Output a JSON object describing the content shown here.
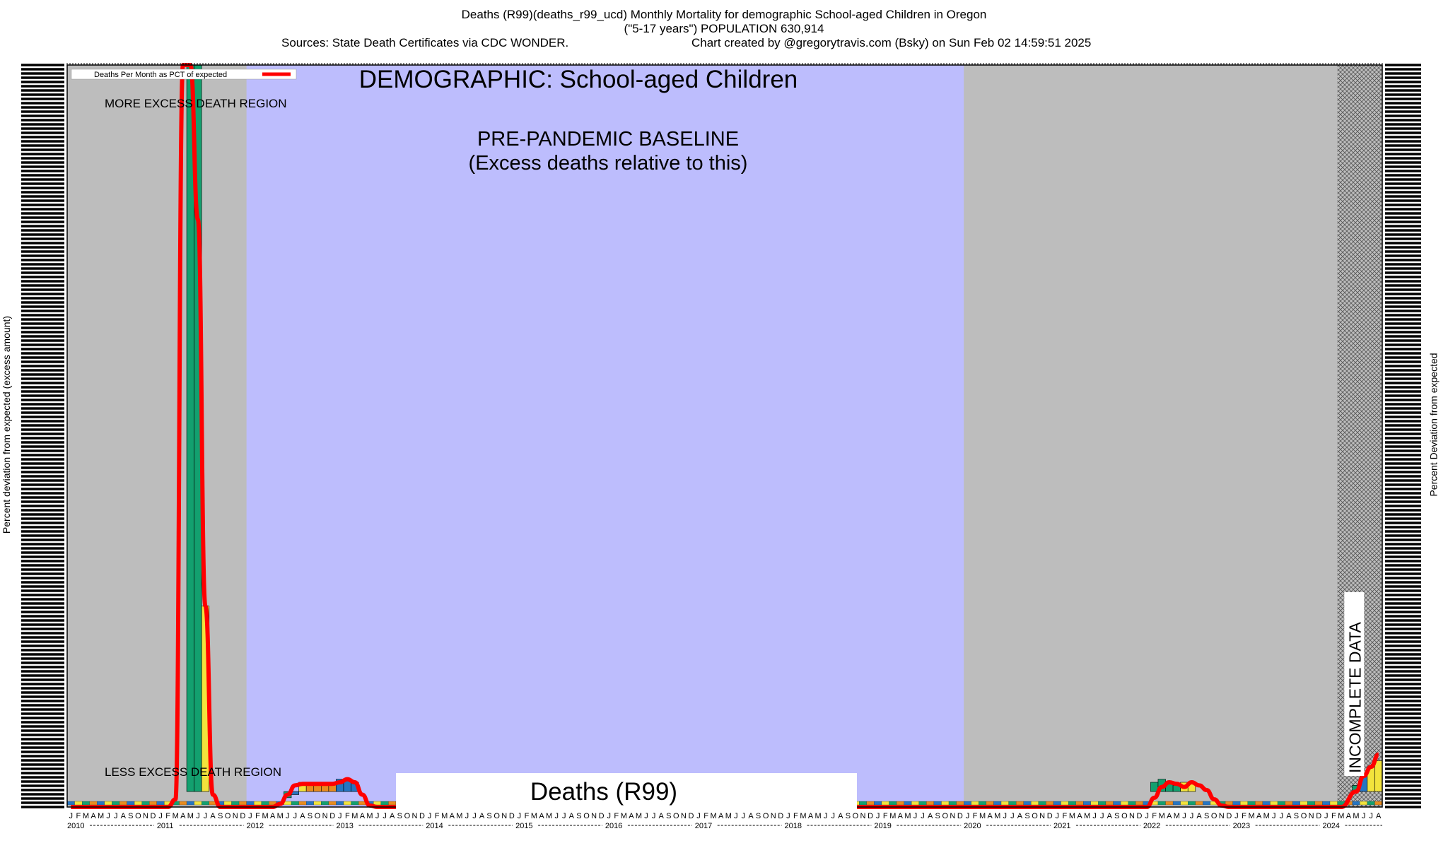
{
  "header": {
    "title_line1": "Deaths (R99)(deaths_r99_ucd) Monthly Mortality for demographic School-aged Children in Oregon",
    "title_line2": "(\"5-17 years\") POPULATION 630,914",
    "sources": "Sources: State Death Certificates via CDC WONDER.",
    "credit": "Chart created by @gregorytravis.com (Bsky) on Sun Feb 02 14:59:51 2025"
  },
  "chart_data": {
    "type": "bar",
    "title": "DEMOGRAPHIC: School-aged Children",
    "ylabel_left": "Percent deviation from expected (excess amount)",
    "ylabel_right": "Percent Deviation from expected",
    "legend": "Deaths Per Month as PCT of expected",
    "bottom_label": "Deaths (R99)",
    "annotations": {
      "more_excess": "MORE EXCESS DEATH REGION",
      "less_excess": "LESS EXCESS DEATH REGION",
      "baseline_title": "PRE-PANDEMIC BASELINE",
      "baseline_subtitle": "(Excess deaths relative to this)",
      "incomplete": "INCOMPLETE DATA"
    },
    "baseline_period": [
      "2012-01",
      "2019-12"
    ],
    "incomplete_period": [
      "2024-03",
      "2024-08"
    ],
    "x_start": "2010-01",
    "x_end": "2024-08",
    "years": [
      "2010",
      "2011",
      "2012",
      "2013",
      "2014",
      "2015",
      "2016",
      "2017",
      "2018",
      "2019",
      "2020",
      "2021",
      "2022",
      "2023",
      "2024"
    ],
    "month_letters": [
      "J",
      "F",
      "M",
      "A",
      "M",
      "J",
      "J",
      "A",
      "S",
      "O",
      "N",
      "D"
    ],
    "ylim": [
      -100,
      4700
    ],
    "series_bars": [
      {
        "month": "2011-05",
        "value": 4700,
        "color": "#13a06f"
      },
      {
        "month": "2011-06",
        "value": 4700,
        "color": "#13a06f"
      },
      {
        "month": "2011-07",
        "value": 1200,
        "color": "#f2e33c"
      },
      {
        "month": "2012-06",
        "value": -40,
        "color": "#13a06f"
      },
      {
        "month": "2012-07",
        "value": -20,
        "color": "#2575c2"
      },
      {
        "month": "2012-08",
        "value": 60,
        "color": "#f2e33c"
      },
      {
        "month": "2012-09",
        "value": 60,
        "color": "#e88b1e"
      },
      {
        "month": "2012-10",
        "value": 60,
        "color": "#e88b1e"
      },
      {
        "month": "2012-11",
        "value": 60,
        "color": "#e88b1e"
      },
      {
        "month": "2012-12",
        "value": 60,
        "color": "#e88b1e"
      },
      {
        "month": "2013-01",
        "value": 80,
        "color": "#2575c2"
      },
      {
        "month": "2013-02",
        "value": 80,
        "color": "#2575c2"
      },
      {
        "month": "2013-03",
        "value": 60,
        "color": "#2575c2"
      },
      {
        "month": "2022-02",
        "value": 60,
        "color": "#13a06f"
      },
      {
        "month": "2022-03",
        "value": 80,
        "color": "#13a06f"
      },
      {
        "month": "2022-04",
        "value": 60,
        "color": "#13a06f"
      },
      {
        "month": "2022-05",
        "value": 40,
        "color": "#13a06f"
      },
      {
        "month": "2022-06",
        "value": 60,
        "color": "#f2e33c"
      },
      {
        "month": "2022-07",
        "value": 60,
        "color": "#f2e33c"
      },
      {
        "month": "2024-05",
        "value": 40,
        "color": "#13a06f"
      },
      {
        "month": "2024-06",
        "value": 100,
        "color": "#2575c2"
      },
      {
        "month": "2024-07",
        "value": 160,
        "color": "#f2e33c"
      },
      {
        "month": "2024-08",
        "value": 200,
        "color": "#f2e33c"
      }
    ],
    "line_series": {
      "name": "Deaths Per Month as PCT of expected",
      "color": "#ff0000",
      "points": [
        [
          "2010-01",
          -100
        ],
        [
          "2011-02",
          -100
        ],
        [
          "2011-03",
          -50
        ],
        [
          "2011-04",
          4700
        ],
        [
          "2011-05",
          4700
        ],
        [
          "2011-06",
          3700
        ],
        [
          "2011-07",
          1200
        ],
        [
          "2011-08",
          -20
        ],
        [
          "2011-09",
          -100
        ],
        [
          "2012-04",
          -100
        ],
        [
          "2012-05",
          -80
        ],
        [
          "2012-06",
          -20
        ],
        [
          "2012-07",
          40
        ],
        [
          "2012-08",
          50
        ],
        [
          "2012-09",
          50
        ],
        [
          "2012-10",
          50
        ],
        [
          "2012-11",
          50
        ],
        [
          "2012-12",
          50
        ],
        [
          "2013-01",
          60
        ],
        [
          "2013-02",
          80
        ],
        [
          "2013-03",
          60
        ],
        [
          "2013-04",
          -20
        ],
        [
          "2013-05",
          -90
        ],
        [
          "2013-06",
          -100
        ],
        [
          "2022-01",
          -100
        ],
        [
          "2022-02",
          -40
        ],
        [
          "2022-03",
          30
        ],
        [
          "2022-04",
          60
        ],
        [
          "2022-05",
          50
        ],
        [
          "2022-06",
          30
        ],
        [
          "2022-07",
          60
        ],
        [
          "2022-08",
          40
        ],
        [
          "2022-09",
          10
        ],
        [
          "2022-10",
          -50
        ],
        [
          "2022-11",
          -90
        ],
        [
          "2022-12",
          -100
        ],
        [
          "2024-03",
          -100
        ],
        [
          "2024-05",
          0
        ],
        [
          "2024-06",
          100
        ],
        [
          "2024-07",
          160
        ],
        [
          "2024-08",
          240
        ]
      ]
    },
    "strip_colors": [
      "#2575c2",
      "#f2e33c",
      "#13a06f",
      "#e88b1e"
    ]
  }
}
